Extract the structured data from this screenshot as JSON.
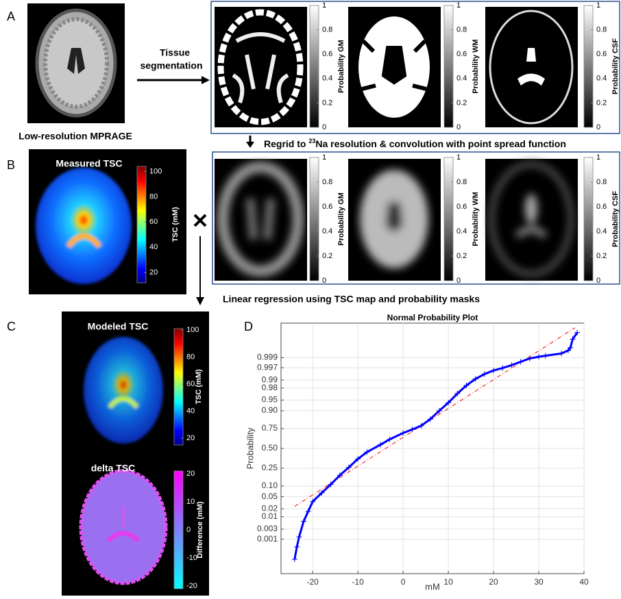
{
  "panel_a": {
    "label": "A",
    "input_caption": "Low-resolution MPRAGE",
    "arrow_label": [
      "Tissue",
      "segmentation"
    ],
    "maps": [
      {
        "colorbar_label": "Probability GM"
      },
      {
        "colorbar_label": "Probability WM"
      },
      {
        "colorbar_label": "Probability CSF"
      }
    ],
    "colorbar_range": [
      0,
      1
    ],
    "colorbar_ticks": [
      0,
      0.2,
      0.4,
      0.6,
      0.8,
      1
    ]
  },
  "regrid_caption": {
    "before": "Regrid to ",
    "superscript": "23",
    "after": "Na resolution & convolution with point spread function"
  },
  "smoothed_maps": {
    "maps": [
      {
        "colorbar_label": "Probability GM"
      },
      {
        "colorbar_label": "Probability WM"
      },
      {
        "colorbar_label": "Probability CSF"
      }
    ],
    "colorbar_range": [
      0,
      1
    ],
    "colorbar_ticks": [
      0,
      0.2,
      0.4,
      0.6,
      0.8,
      1
    ]
  },
  "panel_b": {
    "label": "B",
    "title": "Measured TSC",
    "colorbar_label": "TSC (mM)",
    "colorbar_range": [
      12,
      104
    ],
    "colorbar_ticks": [
      20,
      40,
      60,
      80,
      100
    ]
  },
  "regression_caption": "Linear regression using TSC map and probability masks",
  "panel_c": {
    "label": "C",
    "modeled": {
      "title": "Modeled TSC",
      "colorbar_label": "TSC (mM)",
      "colorbar_range": [
        15,
        101
      ],
      "colorbar_ticks": [
        20,
        40,
        60,
        80,
        100
      ]
    },
    "delta": {
      "title": "delta TSC",
      "colorbar_label": "Difference (mM)",
      "colorbar_range": [
        -21,
        21
      ],
      "colorbar_ticks": [
        -20,
        -10,
        0,
        10,
        20
      ]
    }
  },
  "panel_d_label": "D",
  "chart_data": {
    "type": "scatter",
    "title": "Normal Probability Plot",
    "xlabel": "mM",
    "ylabel": "Probability",
    "y_scale": "normal-probability",
    "grid": true,
    "xlim": [
      -27,
      40
    ],
    "xticks": [
      -20,
      -10,
      0,
      10,
      20,
      30,
      40
    ],
    "ylim": [
      1e-05,
      0.99999
    ],
    "yticks": [
      0.001,
      0.003,
      0.01,
      0.02,
      0.05,
      {
        "value": 0.1,
        "label": "0.10"
      },
      0.25,
      {
        "value": 0.5,
        "label": "0.50"
      },
      0.75,
      {
        "value": 0.9,
        "label": "0.90"
      },
      0.95,
      0.98,
      0.99,
      0.997,
      0.999
    ],
    "series": [
      {
        "color": "#0000ff",
        "marker": "+",
        "x": [
          -24,
          -23.5,
          -23,
          -22,
          -21,
          -20,
          -18,
          -16,
          -14,
          -12,
          -10,
          -8,
          -5,
          -3,
          0,
          2,
          4,
          6,
          8,
          10,
          12,
          14,
          16,
          18,
          20,
          22,
          24,
          26,
          28,
          30,
          31.5,
          35,
          36.5,
          37,
          37.5,
          38.5
        ],
        "values": [
          8e-05,
          0.0004,
          0.0013,
          0.0065,
          0.016,
          0.035,
          0.065,
          0.11,
          0.18,
          0.26,
          0.36,
          0.45,
          0.55,
          0.62,
          0.7,
          0.74,
          0.78,
          0.84,
          0.9,
          0.94,
          0.969,
          0.984,
          0.991,
          0.9943,
          0.996,
          0.9969,
          0.9977,
          0.9984,
          0.9989,
          0.9991,
          0.9992,
          0.99938,
          0.99957,
          0.9997,
          0.9999,
          0.99996
        ]
      },
      {
        "color": "#ff0000",
        "line_style": "dash-dot",
        "x": [
          -24,
          38
        ],
        "values": [
          0.024,
          0.99998
        ]
      }
    ]
  }
}
